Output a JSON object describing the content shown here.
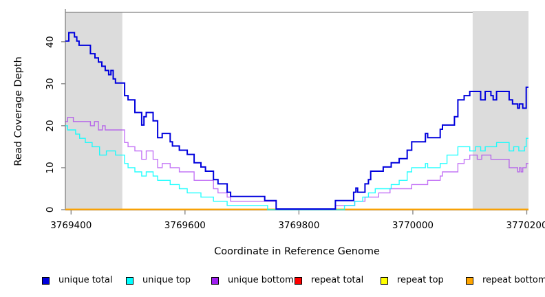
{
  "chart_data": {
    "type": "line",
    "line_style": "step",
    "title": "",
    "xlabel": "Coordinate in Reference Genome",
    "ylabel": "Read Coverage Depth",
    "xlim": [
      3769390,
      3770203
    ],
    "ylim": [
      0,
      47
    ],
    "grid": false,
    "legend_position": "bottom",
    "x_ticks": [
      {
        "value": 3769400,
        "label": "3769400"
      },
      {
        "value": 3769600,
        "label": "3769600"
      },
      {
        "value": 3769800,
        "label": "3769800"
      },
      {
        "value": 3770000,
        "label": "3770000"
      },
      {
        "value": 3770200,
        "label": "3770200"
      }
    ],
    "y_ticks": [
      {
        "value": 0,
        "label": "0"
      },
      {
        "value": 10,
        "label": "10"
      },
      {
        "value": 20,
        "label": "20"
      },
      {
        "value": 30,
        "label": "30"
      },
      {
        "value": 40,
        "label": "40"
      }
    ],
    "shaded_regions": [
      {
        "name": "repeat-region-left",
        "x0": 3769390,
        "x1": 3769490,
        "color": "#DCDCDC"
      },
      {
        "name": "repeat-region-right",
        "x0": 3770105,
        "x1": 3770203,
        "color": "#DCDCDC"
      }
    ],
    "series": [
      {
        "name": "repeat total",
        "color": "#FF0000",
        "points": [
          [
            3769390,
            0
          ]
        ]
      },
      {
        "name": "repeat top",
        "color": "#FFFF00",
        "points": [
          [
            3769390,
            0
          ]
        ]
      },
      {
        "name": "repeat bottom",
        "color": "#FFA500",
        "points": [
          [
            3769390,
            0
          ]
        ]
      },
      {
        "name": "unique bottom",
        "color": "#A020F0",
        "points": [
          [
            3769390,
            21
          ],
          [
            3769394,
            22
          ],
          [
            3769404,
            21
          ],
          [
            3769434,
            20
          ],
          [
            3769441,
            21
          ],
          [
            3769448,
            19
          ],
          [
            3769455,
            20
          ],
          [
            3769460,
            19
          ],
          [
            3769494,
            16
          ],
          [
            3769500,
            15
          ],
          [
            3769512,
            14
          ],
          [
            3769524,
            12
          ],
          [
            3769532,
            14
          ],
          [
            3769544,
            12
          ],
          [
            3769552,
            10
          ],
          [
            3769560,
            11
          ],
          [
            3769574,
            10
          ],
          [
            3769590,
            9
          ],
          [
            3769616,
            7
          ],
          [
            3769650,
            5
          ],
          [
            3769658,
            4
          ],
          [
            3769674,
            3
          ],
          [
            3769680,
            2
          ],
          [
            3769760,
            0
          ],
          [
            3769864,
            1
          ],
          [
            3769898,
            2
          ],
          [
            3769916,
            3
          ],
          [
            3769940,
            4
          ],
          [
            3769960,
            5
          ],
          [
            3769998,
            6
          ],
          [
            3770026,
            7
          ],
          [
            3770048,
            8
          ],
          [
            3770052,
            9
          ],
          [
            3770079,
            11
          ],
          [
            3770090,
            12
          ],
          [
            3770100,
            13
          ],
          [
            3770113,
            12
          ],
          [
            3770121,
            13
          ],
          [
            3770137,
            12
          ],
          [
            3770169,
            10
          ],
          [
            3770184,
            9
          ],
          [
            3770187,
            10
          ],
          [
            3770190,
            9
          ],
          [
            3770193,
            10
          ],
          [
            3770199,
            11
          ]
        ]
      },
      {
        "name": "unique top",
        "color": "#00FFFF",
        "points": [
          [
            3769390,
            20
          ],
          [
            3769394,
            19
          ],
          [
            3769408,
            18
          ],
          [
            3769415,
            17
          ],
          [
            3769425,
            16
          ],
          [
            3769437,
            15
          ],
          [
            3769450,
            13
          ],
          [
            3769462,
            14
          ],
          [
            3769478,
            13
          ],
          [
            3769494,
            11
          ],
          [
            3769500,
            10
          ],
          [
            3769512,
            9
          ],
          [
            3769524,
            8
          ],
          [
            3769532,
            9
          ],
          [
            3769544,
            8
          ],
          [
            3769552,
            7
          ],
          [
            3769574,
            6
          ],
          [
            3769590,
            5
          ],
          [
            3769604,
            4
          ],
          [
            3769628,
            3
          ],
          [
            3769650,
            2
          ],
          [
            3769674,
            1
          ],
          [
            3769745,
            0
          ],
          [
            3769880,
            1
          ],
          [
            3769898,
            2
          ],
          [
            3769912,
            3
          ],
          [
            3769922,
            4
          ],
          [
            3769934,
            5
          ],
          [
            3769962,
            6
          ],
          [
            3769976,
            7
          ],
          [
            3769990,
            9
          ],
          [
            3769998,
            10
          ],
          [
            3770022,
            11
          ],
          [
            3770026,
            10
          ],
          [
            3770048,
            11
          ],
          [
            3770060,
            13
          ],
          [
            3770079,
            15
          ],
          [
            3770100,
            14
          ],
          [
            3770110,
            15
          ],
          [
            3770119,
            14
          ],
          [
            3770127,
            15
          ],
          [
            3770147,
            16
          ],
          [
            3770169,
            14
          ],
          [
            3770177,
            15
          ],
          [
            3770186,
            14
          ],
          [
            3770196,
            15
          ],
          [
            3770199,
            17
          ]
        ]
      },
      {
        "name": "unique total",
        "color": "#0000DD",
        "points": [
          [
            3769390,
            40
          ],
          [
            3769396,
            42
          ],
          [
            3769406,
            41
          ],
          [
            3769410,
            40
          ],
          [
            3769414,
            39
          ],
          [
            3769434,
            37
          ],
          [
            3769442,
            36
          ],
          [
            3769448,
            35
          ],
          [
            3769454,
            34
          ],
          [
            3769460,
            33
          ],
          [
            3769466,
            32
          ],
          [
            3769470,
            33
          ],
          [
            3769474,
            31
          ],
          [
            3769478,
            30
          ],
          [
            3769494,
            27
          ],
          [
            3769500,
            26
          ],
          [
            3769512,
            23
          ],
          [
            3769524,
            20
          ],
          [
            3769528,
            22
          ],
          [
            3769532,
            23
          ],
          [
            3769544,
            21
          ],
          [
            3769552,
            17
          ],
          [
            3769560,
            18
          ],
          [
            3769574,
            16
          ],
          [
            3769578,
            15
          ],
          [
            3769590,
            14
          ],
          [
            3769604,
            13
          ],
          [
            3769616,
            11
          ],
          [
            3769628,
            10
          ],
          [
            3769636,
            9
          ],
          [
            3769650,
            7
          ],
          [
            3769658,
            6
          ],
          [
            3769674,
            4
          ],
          [
            3769680,
            3
          ],
          [
            3769740,
            2
          ],
          [
            3769760,
            0
          ],
          [
            3769864,
            2
          ],
          [
            3769896,
            4
          ],
          [
            3769900,
            5
          ],
          [
            3769903,
            4
          ],
          [
            3769916,
            6
          ],
          [
            3769922,
            7
          ],
          [
            3769926,
            9
          ],
          [
            3769948,
            10
          ],
          [
            3769962,
            11
          ],
          [
            3769976,
            12
          ],
          [
            3769990,
            14
          ],
          [
            3769998,
            16
          ],
          [
            3770022,
            18
          ],
          [
            3770026,
            17
          ],
          [
            3770048,
            19
          ],
          [
            3770052,
            20
          ],
          [
            3770073,
            22
          ],
          [
            3770079,
            26
          ],
          [
            3770090,
            27
          ],
          [
            3770100,
            28
          ],
          [
            3770119,
            26
          ],
          [
            3770127,
            28
          ],
          [
            3770137,
            27
          ],
          [
            3770141,
            26
          ],
          [
            3770147,
            28
          ],
          [
            3770169,
            26
          ],
          [
            3770175,
            25
          ],
          [
            3770184,
            24
          ],
          [
            3770187,
            25
          ],
          [
            3770193,
            24
          ],
          [
            3770199,
            29
          ]
        ]
      }
    ],
    "legend": [
      {
        "label": "unique total",
        "color": "#0000DD"
      },
      {
        "label": "unique top",
        "color": "#00FFFF"
      },
      {
        "label": "unique bottom",
        "color": "#A020F0"
      },
      {
        "label": "repeat total",
        "color": "#FF0000"
      },
      {
        "label": "repeat top",
        "color": "#FFFF00"
      },
      {
        "label": "repeat bottom",
        "color": "#FFA500"
      }
    ]
  },
  "colors": {
    "background": "#FFFFFF",
    "plot_border": "#808080",
    "tick": "#808080",
    "shaded_band": "#DCDCDC",
    "text": "#000000"
  }
}
